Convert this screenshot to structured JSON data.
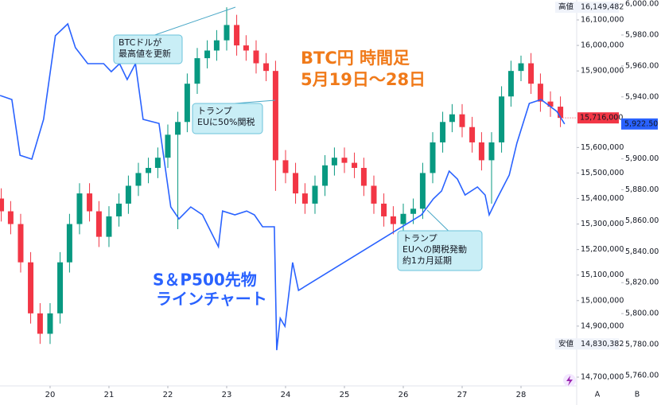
{
  "chart_data": {
    "type": "candlestick",
    "title": [
      "BTC円 時間足",
      "5月19日〜28日"
    ],
    "line_label": [
      "S＆P500先物",
      "ラインチャート"
    ],
    "annotations": [
      {
        "lines": [
          "BTCドルが",
          "最高値を更新"
        ]
      },
      {
        "lines": [
          "トランプ",
          "EUに50%関税"
        ]
      },
      {
        "lines": [
          "トランプ",
          "EUへの関税発動",
          "約1カ月延期"
        ]
      }
    ],
    "up_color": "#089981",
    "down_color": "#f23645",
    "x": [
      19.17,
      19.33,
      19.5,
      19.67,
      19.83,
      20,
      20.17,
      20.33,
      20.5,
      20.67,
      20.83,
      21,
      21.17,
      21.33,
      21.5,
      21.67,
      21.83,
      22,
      22.17,
      22.33,
      22.5,
      22.67,
      22.83,
      23,
      23.17,
      23.33,
      23.5,
      23.67,
      23.83,
      24,
      24.17,
      24.33,
      24.5,
      24.67,
      24.83,
      25,
      25.17,
      25.33,
      25.5,
      25.67,
      25.83,
      26,
      26.17,
      26.33,
      26.5,
      26.67,
      26.83,
      27,
      27.17,
      27.33,
      27.5,
      27.67,
      27.83,
      28,
      28.17,
      28.33,
      28.5,
      28.67
    ],
    "open": [
      15400000,
      15350000,
      15300000,
      15150000,
      14950000,
      14870000,
      14950000,
      15150000,
      15300000,
      15420000,
      15350000,
      15250000,
      15330000,
      15380000,
      15450000,
      15500000,
      15520000,
      15560000,
      15650000,
      15700000,
      15850000,
      15950000,
      15980000,
      16020000,
      16080000,
      16000000,
      15980000,
      15930000,
      15900000,
      15550000,
      15500000,
      15420000,
      15380000,
      15450000,
      15530000,
      15560000,
      15540000,
      15520000,
      15450000,
      15380000,
      15330000,
      15300000,
      15340000,
      15360000,
      15500000,
      15620000,
      15700000,
      15730000,
      15680000,
      15620000,
      15550000,
      15620000,
      15800000,
      15900000,
      15930000,
      15850000,
      15780000,
      15760000
    ],
    "high": [
      15440000,
      15390000,
      15340000,
      15190000,
      14990000,
      14990000,
      15190000,
      15340000,
      15460000,
      15460000,
      15390000,
      15370000,
      15420000,
      15490000,
      15540000,
      15560000,
      15600000,
      15690000,
      15740000,
      15890000,
      15990000,
      16020000,
      16060000,
      16149482,
      16120000,
      16040000,
      16020000,
      15970000,
      15940000,
      15590000,
      15540000,
      15460000,
      15490000,
      15570000,
      15600000,
      15600000,
      15580000,
      15560000,
      15490000,
      15420000,
      15370000,
      15380000,
      15400000,
      15540000,
      15660000,
      15740000,
      15770000,
      15770000,
      15720000,
      15660000,
      15660000,
      15840000,
      15940000,
      15960000,
      15970000,
      15890000,
      15820000,
      15800000
    ],
    "low": [
      15310000,
      15260000,
      15110000,
      14910000,
      14830382,
      14830000,
      14910000,
      15110000,
      15260000,
      15310000,
      15210000,
      15210000,
      15290000,
      15340000,
      15410000,
      15460000,
      15480000,
      15520000,
      15280000,
      15660000,
      15810000,
      15910000,
      15940000,
      15980000,
      15960000,
      15940000,
      15890000,
      15860000,
      15430000,
      15460000,
      15380000,
      15340000,
      15340000,
      15410000,
      15490000,
      15500000,
      15480000,
      15410000,
      15340000,
      15290000,
      15260000,
      15260000,
      15300000,
      15320000,
      15460000,
      15580000,
      15660000,
      15640000,
      15580000,
      15510000,
      15380000,
      15580000,
      15760000,
      15860000,
      15810000,
      15740000,
      15720000,
      15680000
    ],
    "close": [
      15350000,
      15300000,
      15150000,
      14950000,
      14870000,
      14950000,
      15150000,
      15300000,
      15420000,
      15350000,
      15250000,
      15330000,
      15380000,
      15450000,
      15500000,
      15520000,
      15560000,
      15650000,
      15700000,
      15850000,
      15950000,
      15980000,
      16020000,
      16080000,
      16000000,
      15980000,
      15930000,
      15900000,
      15550000,
      15500000,
      15420000,
      15380000,
      15450000,
      15530000,
      15560000,
      15540000,
      15520000,
      15450000,
      15380000,
      15330000,
      15300000,
      15340000,
      15360000,
      15500000,
      15620000,
      15700000,
      15730000,
      15680000,
      15620000,
      15550000,
      15620000,
      15800000,
      15900000,
      15930000,
      15850000,
      15780000,
      15760000,
      15716000
    ],
    "high_label": {
      "text": "高値",
      "value_label": "16,149,482"
    },
    "low_label": {
      "text": "安値",
      "value_label": "14,830,382"
    },
    "last_label": "15,716,000",
    "line": {
      "axis": "y2",
      "color": "#2962ff",
      "x": [
        19.15,
        19.35,
        19.49,
        19.69,
        19.89,
        20.09,
        20.3,
        20.43,
        20.64,
        20.91,
        21.04,
        21.18,
        21.31,
        21.45,
        21.58,
        21.85,
        22.05,
        22.19,
        22.39,
        22.59,
        22.86,
        22.93,
        23.14,
        23.34,
        23.47,
        23.61,
        23.81,
        23.85,
        23.91,
        23.99,
        24.12,
        24.22,
        26.31,
        26.51,
        26.65,
        26.78,
        26.92,
        27.05,
        27.26,
        27.39,
        27.46,
        27.59,
        27.8,
        27.93,
        28.14,
        28.34,
        28.61,
        28.74
      ],
      "values": [
        5940.9,
        5938.3,
        5902.3,
        5899.8,
        5925.5,
        5979.5,
        5987.2,
        5971.8,
        5961.5,
        5961.5,
        5956.3,
        5961.5,
        5951.2,
        5961.5,
        5925.5,
        5922.9,
        5868.9,
        5861.2,
        5868.9,
        5863.8,
        5843.2,
        5866.3,
        5863.8,
        5866.3,
        5863.8,
        5856.1,
        5856.1,
        5776.4,
        5797.0,
        5791.8,
        5833.0,
        5815.0,
        5863.8,
        5874.1,
        5879.2,
        5892.1,
        5886.9,
        5876.6,
        5881.8,
        5876.6,
        5863.8,
        5874.1,
        5889.5,
        5910.1,
        5935.8,
        5938.3,
        5930.6,
        5922.5
      ],
      "last_label": "5,922.50"
    },
    "xlim": [
      19.149,
      28.946
    ],
    "xticks": [
      20,
      21,
      22,
      23,
      24,
      25,
      26,
      27,
      28
    ],
    "ylim": [
      14665700,
      16178000
    ],
    "yticks": [
      {
        "value": 16100000,
        "label": "16,100,000"
      },
      {
        "value": 16000000,
        "label": "16,000,000"
      },
      {
        "value": 15900000,
        "label": "15,900,000"
      },
      {
        "value": 15600000,
        "label": "15,600,000"
      },
      {
        "value": 15500000,
        "label": "15,500,000"
      },
      {
        "value": 15400000,
        "label": "15,400,000"
      },
      {
        "value": 15300000,
        "label": "15,300,000"
      },
      {
        "value": 15200000,
        "label": "15,200,000"
      },
      {
        "value": 15100000,
        "label": "15,100,000"
      },
      {
        "value": 15000000,
        "label": "15,000,000"
      },
      {
        "value": 14900000,
        "label": "14,900,000"
      },
      {
        "value": 14700000,
        "label": "14,700,000"
      }
    ],
    "y2lim": [
      5753.3,
      6002.6
    ],
    "y2ticks": [
      {
        "value": 6000,
        "label": "6,000.00"
      },
      {
        "value": 5980,
        "label": "5,980.00"
      },
      {
        "value": 5960,
        "label": "5,960.00"
      },
      {
        "value": 5940,
        "label": "5,940.00"
      },
      {
        "value": 5900,
        "label": "5,900.00"
      },
      {
        "value": 5880,
        "label": "5,880.00"
      },
      {
        "value": 5860,
        "label": "5,860.00"
      },
      {
        "value": 5840,
        "label": "5,840.00"
      },
      {
        "value": 5820,
        "label": "5,820.00"
      },
      {
        "value": 5800,
        "label": "5,800.00"
      },
      {
        "value": 5780,
        "label": "5,780.00"
      },
      {
        "value": 5760,
        "label": "5,760.00"
      }
    ],
    "corner_labels": [
      "A",
      "B"
    ],
    "grid": false
  }
}
